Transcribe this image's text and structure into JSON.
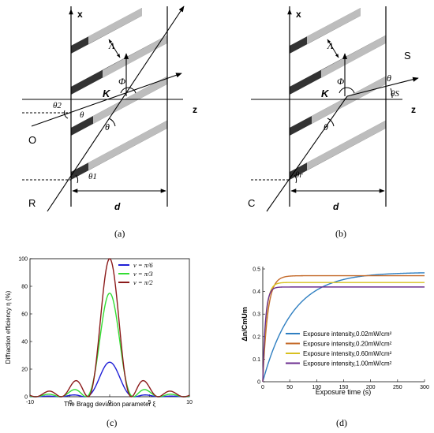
{
  "panel_a": {
    "caption": "(a)",
    "labels": {
      "x_axis": "x",
      "z_axis": "z",
      "lambda": "Λ",
      "phi": "Φ",
      "K": "K",
      "theta": "θ",
      "theta_inner": "θ",
      "theta2": "θ2",
      "theta1": "θ1",
      "O": "O",
      "R": "R",
      "d": "d"
    }
  },
  "panel_b": {
    "caption": "(b)",
    "labels": {
      "x_axis": "x",
      "z_axis": "z",
      "lambda": "Λ",
      "phi": "Φ",
      "K": "K",
      "theta": "θ",
      "theta_top": "θ",
      "theta_s": "θS",
      "theta_r": "θr",
      "S": "S",
      "C": "C",
      "d": "d"
    }
  },
  "panel_c": {
    "caption": "(c)",
    "chart_data": {
      "type": "line",
      "title": "",
      "xlabel": "The Bragg deviation parameter ξ",
      "ylabel": "Diffraction efficiency η (%)",
      "xlim": [
        -10,
        10
      ],
      "ylim": [
        0,
        100
      ],
      "xticks": [
        -10,
        -5,
        0,
        5,
        10
      ],
      "yticks": [
        0,
        20,
        40,
        60,
        80,
        100
      ],
      "legend": "top-right",
      "series": [
        {
          "name": "ν = π/6",
          "color": "#1f1fd6",
          "nu": 0.5236
        },
        {
          "name": "ν = π/3",
          "color": "#33dd33",
          "nu": 1.0472
        },
        {
          "name": "ν = π/2",
          "color": "#8b1a1a",
          "nu": 1.5708
        }
      ]
    }
  },
  "panel_d": {
    "caption": "(d)",
    "chart_data": {
      "type": "line",
      "title": "",
      "xlabel": "Exposure time (s)",
      "ylabel": "Δn/CmUm",
      "xlim": [
        0,
        300
      ],
      "ylim": [
        0,
        0.5
      ],
      "xticks": [
        0,
        50,
        100,
        150,
        200,
        250,
        300
      ],
      "yticks": [
        0,
        0.1,
        0.2,
        0.3,
        0.4,
        0.5
      ],
      "legend": "bottom-right",
      "series": [
        {
          "name": "Exposure intensity,0.02mW/cm²",
          "color": "#2f7fc1",
          "saturation": 0.485,
          "tau": 55
        },
        {
          "name": "Exposure intensity,0.20mW/cm²",
          "color": "#c46a2a",
          "saturation": 0.47,
          "tau": 9
        },
        {
          "name": "Exposure intensity,0.60mW/cm²",
          "color": "#d8c020",
          "saturation": 0.44,
          "tau": 6
        },
        {
          "name": "Exposure intensity,1.00mW/cm²",
          "color": "#6b2d8f",
          "saturation": 0.42,
          "tau": 5
        }
      ]
    }
  }
}
